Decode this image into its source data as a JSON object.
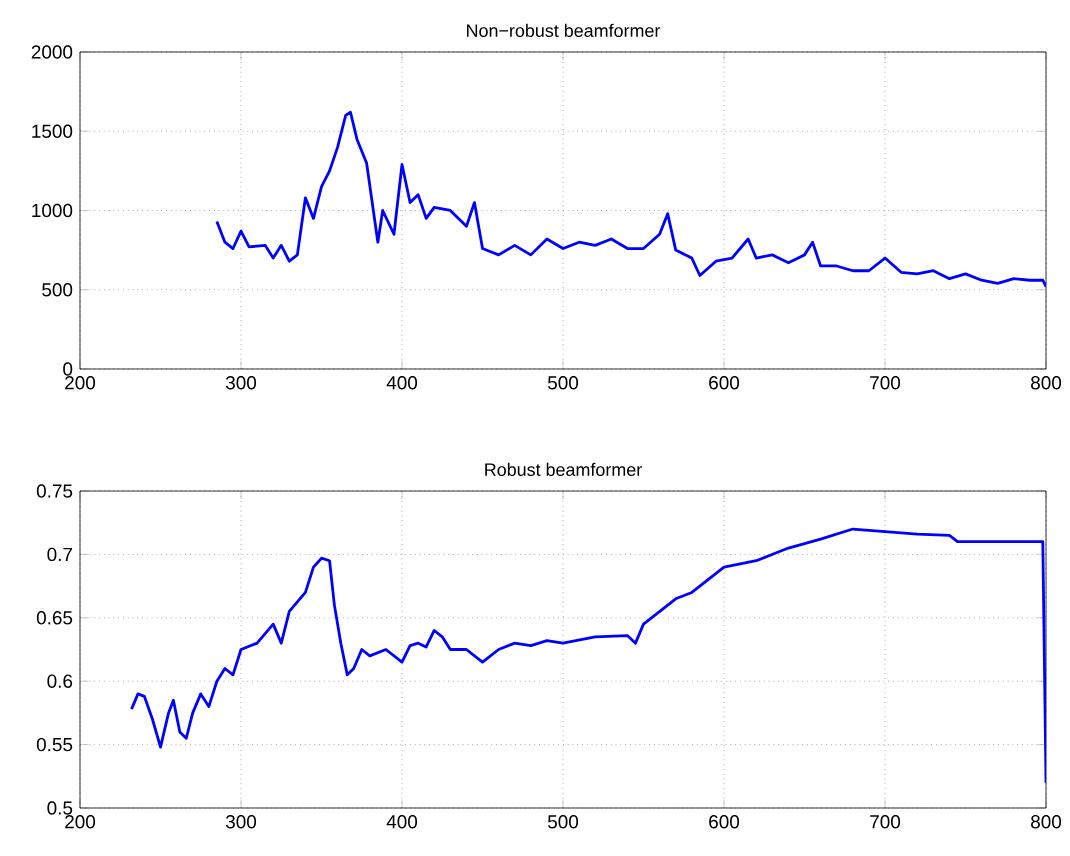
{
  "chart_data": [
    {
      "type": "line",
      "title": "Non−robust beamformer",
      "xlim": [
        200,
        800
      ],
      "ylim": [
        0,
        2000
      ],
      "xticks": [
        200,
        300,
        400,
        500,
        600,
        700,
        800
      ],
      "yticks": [
        0,
        500,
        1000,
        1500,
        2000
      ],
      "grid": true,
      "series": [
        {
          "color": "#0000ff",
          "x": [
            285,
            290,
            295,
            300,
            305,
            315,
            320,
            325,
            330,
            335,
            340,
            345,
            350,
            355,
            360,
            365,
            368,
            372,
            378,
            385,
            388,
            395,
            400,
            405,
            410,
            415,
            420,
            430,
            440,
            445,
            450,
            460,
            470,
            480,
            490,
            500,
            510,
            520,
            530,
            540,
            550,
            560,
            565,
            570,
            580,
            585,
            595,
            605,
            615,
            620,
            630,
            640,
            650,
            655,
            660,
            670,
            680,
            690,
            700,
            710,
            720,
            730,
            740,
            750,
            760,
            770,
            780,
            790,
            798,
            800
          ],
          "values": [
            930,
            800,
            760,
            870,
            770,
            780,
            700,
            780,
            680,
            720,
            1080,
            950,
            1150,
            1250,
            1400,
            1600,
            1620,
            1450,
            1300,
            800,
            1000,
            850,
            1290,
            1050,
            1100,
            950,
            1020,
            1000,
            900,
            1050,
            760,
            720,
            780,
            720,
            820,
            760,
            800,
            780,
            820,
            760,
            760,
            850,
            980,
            750,
            700,
            590,
            680,
            700,
            820,
            700,
            720,
            670,
            720,
            800,
            650,
            650,
            620,
            620,
            700,
            610,
            600,
            620,
            570,
            600,
            560,
            540,
            570,
            560,
            560,
            520
          ]
        }
      ]
    },
    {
      "type": "line",
      "title": "Robust beamformer",
      "xlim": [
        200,
        800
      ],
      "ylim": [
        0.5,
        0.75
      ],
      "xticks": [
        200,
        300,
        400,
        500,
        600,
        700,
        800
      ],
      "yticks": [
        0.5,
        0.55,
        0.6,
        0.65,
        0.7,
        0.75
      ],
      "grid": true,
      "series": [
        {
          "color": "#0000ff",
          "x": [
            232,
            236,
            240,
            245,
            250,
            255,
            258,
            262,
            266,
            270,
            275,
            280,
            285,
            290,
            295,
            300,
            310,
            320,
            325,
            330,
            340,
            345,
            350,
            355,
            358,
            362,
            366,
            370,
            375,
            380,
            390,
            400,
            405,
            410,
            415,
            420,
            425,
            430,
            440,
            450,
            460,
            470,
            480,
            490,
            500,
            520,
            540,
            545,
            550,
            560,
            570,
            580,
            590,
            600,
            620,
            640,
            660,
            680,
            700,
            720,
            740,
            745,
            760,
            798,
            800
          ],
          "values": [
            0.578,
            0.59,
            0.588,
            0.57,
            0.548,
            0.575,
            0.585,
            0.56,
            0.555,
            0.575,
            0.59,
            0.58,
            0.6,
            0.61,
            0.605,
            0.625,
            0.63,
            0.645,
            0.63,
            0.655,
            0.67,
            0.69,
            0.697,
            0.695,
            0.66,
            0.63,
            0.605,
            0.61,
            0.625,
            0.62,
            0.625,
            0.615,
            0.628,
            0.63,
            0.627,
            0.64,
            0.635,
            0.625,
            0.625,
            0.615,
            0.625,
            0.63,
            0.628,
            0.632,
            0.63,
            0.635,
            0.636,
            0.63,
            0.645,
            0.655,
            0.665,
            0.67,
            0.68,
            0.69,
            0.695,
            0.705,
            0.712,
            0.72,
            0.718,
            0.716,
            0.715,
            0.71,
            0.71,
            0.71,
            0.52
          ]
        }
      ]
    }
  ]
}
